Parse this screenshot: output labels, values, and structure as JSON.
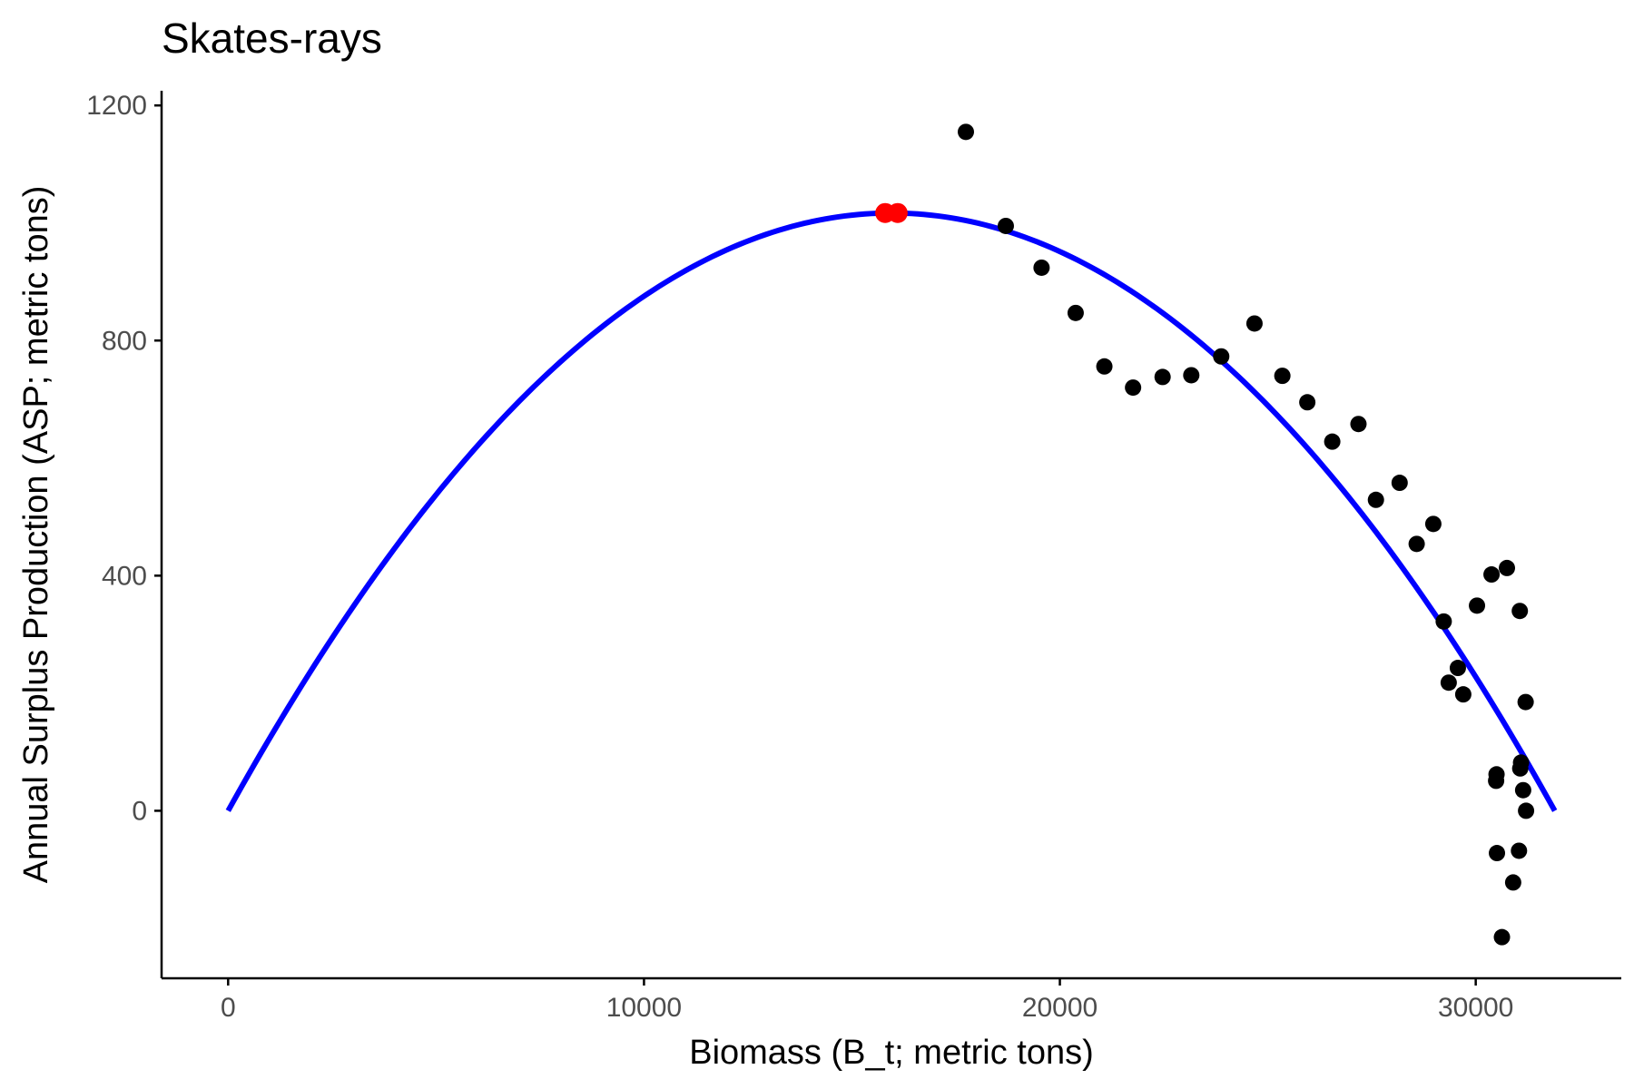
{
  "chart_data": {
    "type": "scatter",
    "title": "Skates-rays",
    "xlabel": "Biomass (B_t; metric tons)",
    "ylabel": "Annual Surplus Production (ASP; metric tons)",
    "xlim": [
      -1600,
      33500
    ],
    "ylim": [
      -285,
      1225
    ],
    "x_ticks": [
      0,
      10000,
      20000,
      30000
    ],
    "x_tick_labels": [
      "0",
      "10000",
      "20000",
      "30000"
    ],
    "y_ticks": [
      0,
      400,
      800,
      1200
    ],
    "y_tick_labels": [
      "0",
      "400",
      "800",
      "1200"
    ],
    "grid": false,
    "legend": "none",
    "curve": {
      "type": "parabola",
      "color": "#0000ff",
      "x_start": 0,
      "x_end": 31900,
      "peak_x": 15950,
      "peak_y": 1017
    },
    "points": {
      "color": "#000000",
      "x": [
        17740,
        18700,
        19560,
        20380,
        21070,
        21760,
        22470,
        23160,
        23880,
        24680,
        25350,
        25950,
        26550,
        27180,
        27600,
        28170,
        28580,
        28980,
        29230,
        29350,
        29570,
        29700,
        30030,
        30380,
        30490,
        30500,
        30510,
        30630,
        30750,
        30900,
        31040,
        31060,
        31070,
        31090,
        31140,
        31200,
        31210
      ],
      "y": [
        1155,
        995,
        924,
        847,
        756,
        720,
        738,
        741,
        773,
        829,
        740,
        695,
        628,
        658,
        529,
        558,
        454,
        488,
        322,
        218,
        243,
        198,
        349,
        402,
        51,
        62,
        -72,
        -215,
        413,
        -122,
        -68,
        340,
        72,
        82,
        35,
        185,
        0
      ]
    },
    "highlight_points": {
      "color": "#ff0000",
      "x": [
        15800,
        16100
      ],
      "y": [
        1017,
        1017
      ]
    }
  }
}
